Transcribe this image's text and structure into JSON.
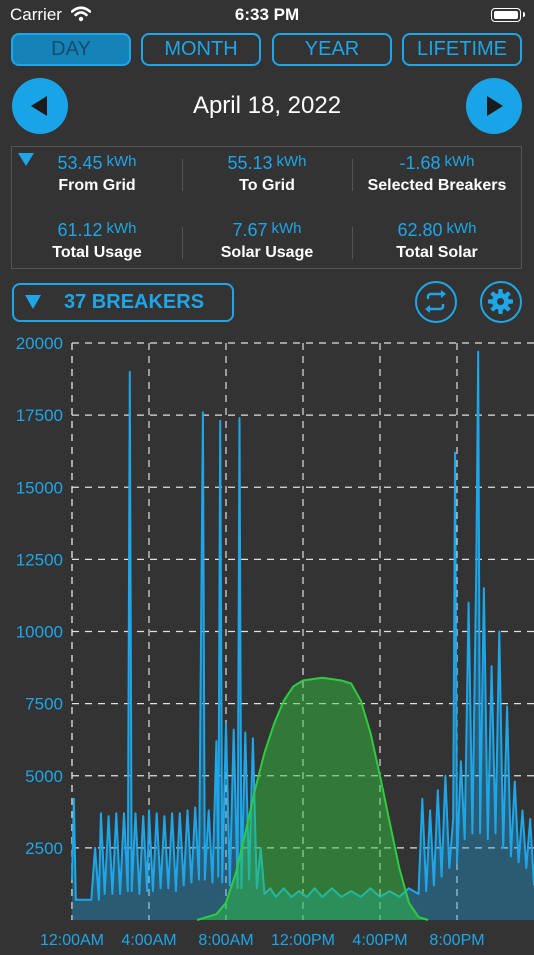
{
  "status_bar": {
    "carrier": "Carrier",
    "time": "6:33 PM"
  },
  "tabs": [
    {
      "label": "DAY",
      "active": true
    },
    {
      "label": "MONTH",
      "active": false
    },
    {
      "label": "YEAR",
      "active": false
    },
    {
      "label": "LIFETIME",
      "active": false
    }
  ],
  "date": "April 18, 2022",
  "summary": [
    {
      "value": "53.45",
      "unit": "kWh",
      "label": "From Grid"
    },
    {
      "value": "55.13",
      "unit": "kWh",
      "label": "To Grid"
    },
    {
      "value": "-1.68",
      "unit": "kWh",
      "label": "Selected Breakers"
    },
    {
      "value": "61.12",
      "unit": "kWh",
      "label": "Total Usage"
    },
    {
      "value": "7.67",
      "unit": "kWh",
      "label": "Solar Usage"
    },
    {
      "value": "62.80",
      "unit": "kWh",
      "label": "Total Solar"
    }
  ],
  "breakers_label": "37 BREAKERS",
  "colors": {
    "accent": "#1ea6e8",
    "solar": "#2ecc40",
    "background": "#333333"
  },
  "icons": {
    "prev": "chevron-left-icon",
    "next": "chevron-right-icon",
    "swap": "swap-icon",
    "settings": "gear-icon"
  },
  "chart_data": {
    "type": "area",
    "x_tick_labels": [
      "12:00AM",
      "4:00AM",
      "8:00AM",
      "12:00PM",
      "4:00PM",
      "8:00PM"
    ],
    "y_ticks": [
      20000,
      17500,
      15000,
      12500,
      10000,
      7500,
      5000,
      2500
    ],
    "ylim": [
      0,
      20000
    ],
    "xlim_hours": [
      0,
      24
    ],
    "grid": true,
    "series": [
      {
        "color": "#1ea6e8",
        "points": [
          [
            0.0,
            1400
          ],
          [
            0.1,
            4200
          ],
          [
            0.2,
            700
          ],
          [
            1.0,
            700
          ],
          [
            1.2,
            2500
          ],
          [
            1.4,
            700
          ],
          [
            1.5,
            3700
          ],
          [
            1.7,
            900
          ],
          [
            1.9,
            3600
          ],
          [
            2.1,
            900
          ],
          [
            2.3,
            3700
          ],
          [
            2.5,
            900
          ],
          [
            2.7,
            3700
          ],
          [
            2.9,
            1000
          ],
          [
            3.0,
            19000
          ],
          [
            3.1,
            1000
          ],
          [
            3.3,
            3700
          ],
          [
            3.5,
            900
          ],
          [
            3.7,
            3600
          ],
          [
            3.9,
            1000
          ],
          [
            4.0,
            3800
          ],
          [
            4.2,
            1000
          ],
          [
            4.4,
            3700
          ],
          [
            4.6,
            1100
          ],
          [
            4.8,
            3600
          ],
          [
            5.0,
            1100
          ],
          [
            5.2,
            3700
          ],
          [
            5.4,
            1000
          ],
          [
            5.6,
            3700
          ],
          [
            5.8,
            1200
          ],
          [
            6.0,
            3800
          ],
          [
            6.2,
            1300
          ],
          [
            6.4,
            3900
          ],
          [
            6.6,
            1400
          ],
          [
            6.8,
            17600
          ],
          [
            6.9,
            1400
          ],
          [
            7.1,
            3800
          ],
          [
            7.3,
            1300
          ],
          [
            7.5,
            6200
          ],
          [
            7.6,
            1500
          ],
          [
            7.7,
            17300
          ],
          [
            7.8,
            1300
          ],
          [
            8.0,
            6800
          ],
          [
            8.2,
            1200
          ],
          [
            8.4,
            6600
          ],
          [
            8.6,
            1100
          ],
          [
            8.7,
            17400
          ],
          [
            8.8,
            1100
          ],
          [
            9.0,
            6500
          ],
          [
            9.2,
            1400
          ],
          [
            9.4,
            6300
          ],
          [
            9.6,
            1100
          ],
          [
            9.8,
            2500
          ],
          [
            10.0,
            900
          ],
          [
            10.3,
            1100
          ],
          [
            10.6,
            800
          ],
          [
            11.0,
            1100
          ],
          [
            11.4,
            800
          ],
          [
            11.8,
            1000
          ],
          [
            12.2,
            800
          ],
          [
            12.6,
            1100
          ],
          [
            13.0,
            800
          ],
          [
            13.5,
            1100
          ],
          [
            14.0,
            800
          ],
          [
            14.5,
            1000
          ],
          [
            15.0,
            800
          ],
          [
            15.5,
            1100
          ],
          [
            16.0,
            800
          ],
          [
            16.5,
            1000
          ],
          [
            17.0,
            800
          ],
          [
            17.5,
            1100
          ],
          [
            18.0,
            900
          ],
          [
            18.2,
            4200
          ],
          [
            18.4,
            1000
          ],
          [
            18.6,
            3800
          ],
          [
            18.8,
            1200
          ],
          [
            19.0,
            4500
          ],
          [
            19.2,
            1500
          ],
          [
            19.4,
            5000
          ],
          [
            19.6,
            1800
          ],
          [
            19.8,
            3500
          ],
          [
            19.9,
            16200
          ],
          [
            20.0,
            2000
          ],
          [
            20.2,
            5500
          ],
          [
            20.4,
            2800
          ],
          [
            20.6,
            11000
          ],
          [
            20.8,
            3000
          ],
          [
            21.0,
            12200
          ],
          [
            21.1,
            19700
          ],
          [
            21.2,
            3000
          ],
          [
            21.4,
            11500
          ],
          [
            21.6,
            2800
          ],
          [
            21.8,
            8800
          ],
          [
            22.0,
            3000
          ],
          [
            22.2,
            10000
          ],
          [
            22.4,
            2500
          ],
          [
            22.6,
            7400
          ],
          [
            22.8,
            2200
          ],
          [
            23.0,
            4800
          ],
          [
            23.2,
            2000
          ],
          [
            23.4,
            3800
          ],
          [
            23.6,
            1800
          ],
          [
            23.8,
            3500
          ],
          [
            24.0,
            1200
          ]
        ]
      },
      {
        "color": "#2ecc40",
        "points": [
          [
            6.5,
            0
          ],
          [
            7.5,
            200
          ],
          [
            8.0,
            600
          ],
          [
            8.5,
            1600
          ],
          [
            9.0,
            3000
          ],
          [
            9.5,
            4500
          ],
          [
            10.0,
            5800
          ],
          [
            10.5,
            6800
          ],
          [
            11.0,
            7600
          ],
          [
            11.5,
            8100
          ],
          [
            12.0,
            8300
          ],
          [
            12.5,
            8350
          ],
          [
            13.0,
            8400
          ],
          [
            13.5,
            8350
          ],
          [
            14.0,
            8300
          ],
          [
            14.5,
            8200
          ],
          [
            15.0,
            7600
          ],
          [
            15.5,
            6500
          ],
          [
            16.0,
            5000
          ],
          [
            16.5,
            3400
          ],
          [
            17.0,
            1800
          ],
          [
            17.5,
            600
          ],
          [
            18.0,
            100
          ],
          [
            18.5,
            0
          ]
        ]
      }
    ]
  }
}
